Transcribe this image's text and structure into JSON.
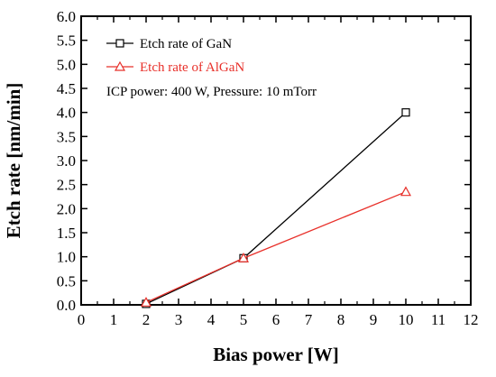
{
  "chart_data": {
    "type": "line",
    "title": "",
    "xlabel": "Bias power [W]",
    "ylabel": "Etch rate [nm/min]",
    "xlim": [
      0,
      12
    ],
    "ylim": [
      0.0,
      6.0
    ],
    "xticks": [
      0,
      1,
      2,
      3,
      4,
      5,
      6,
      7,
      8,
      9,
      10,
      11,
      12
    ],
    "yticks": [
      "0.0",
      "0.5",
      "1.0",
      "1.5",
      "2.0",
      "2.5",
      "3.0",
      "3.5",
      "4.0",
      "4.5",
      "5.0",
      "5.5",
      "6.0"
    ],
    "grid": false,
    "legend_position": "top-left",
    "series": [
      {
        "name": "Etch rate of GaN",
        "marker": "square",
        "color": "#000000",
        "x": [
          2,
          5,
          10
        ],
        "y": [
          0.02,
          0.97,
          4.0
        ]
      },
      {
        "name": "Etch rate of AlGaN",
        "marker": "triangle",
        "color": "#e8302a",
        "x": [
          2,
          5,
          10
        ],
        "y": [
          0.05,
          0.97,
          2.35
        ]
      }
    ],
    "annotations": [
      "ICP power: 400 W, Pressure: 10 mTorr"
    ]
  }
}
